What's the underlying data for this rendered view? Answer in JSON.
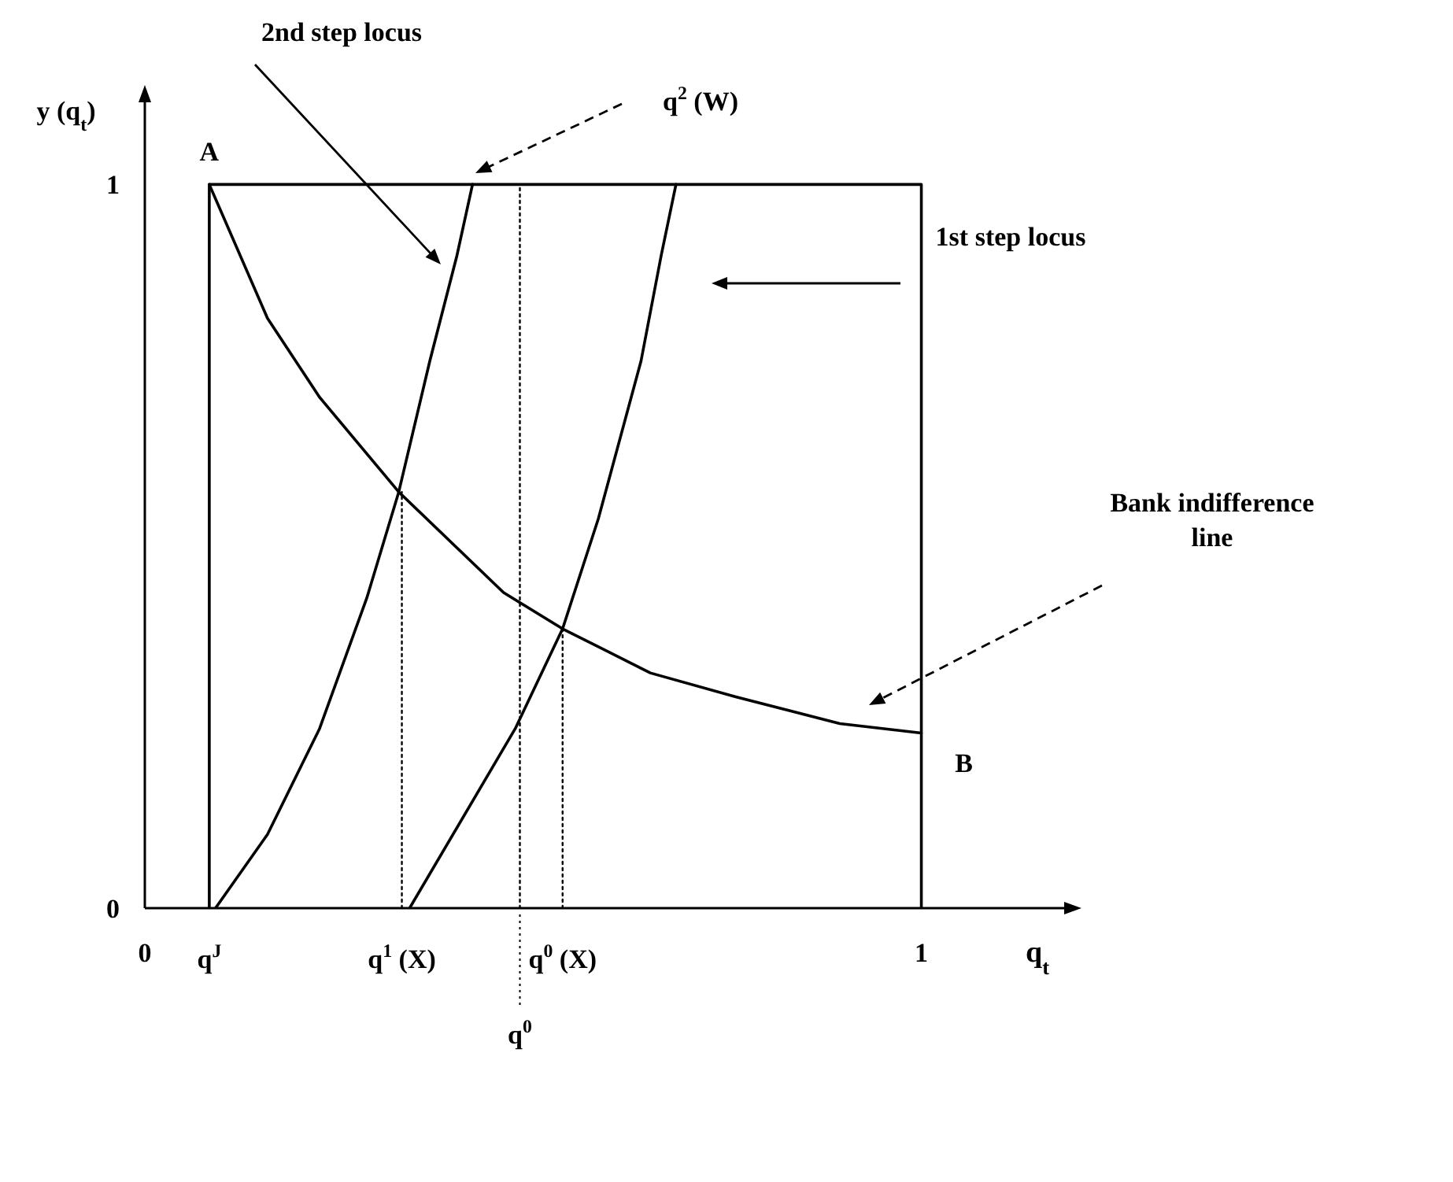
{
  "chart_data": {
    "type": "line",
    "xlabel": "q$_{t}$",
    "ylabel": "y (q$_{t}$)",
    "xlim": [
      0,
      1.19
    ],
    "xticks": [
      0,
      1
    ],
    "ylim": [
      0,
      1.12
    ],
    "yticks": [
      0,
      1
    ],
    "marker": "none",
    "series": [
      {
        "color": "#000000",
        "x": [
          0.083,
          0.158,
          0.225,
          0.327,
          0.462,
          0.538,
          0.651,
          0.761,
          0.895,
          1.0
        ],
        "values": [
          1,
          0.815,
          0.706,
          0.575,
          0.436,
          0.386,
          0.325,
          0.292,
          0.255,
          0.242
        ]
      },
      {
        "color": "#000000",
        "x": [
          0.091,
          0.158,
          0.225,
          0.286,
          0.327,
          0.367,
          0.402,
          0.422
        ],
        "values": [
          0,
          0.102,
          0.248,
          0.429,
          0.575,
          0.756,
          0.902,
          1
        ]
      },
      {
        "color": "#000000",
        "x": [
          0.341,
          0.477,
          0.538,
          0.584,
          0.639,
          0.665,
          0.684
        ],
        "values": [
          0,
          0.248,
          0.386,
          0.538,
          0.756,
          0.902,
          1
        ]
      },
      {
        "color": "#000000",
        "x": [
          0.083,
          0.083,
          1,
          1
        ],
        "values": [
          0,
          1,
          1,
          0
        ]
      },
      {
        "color": "#000000",
        "line_style": "dotted",
        "x": [
          0.331,
          0.331
        ],
        "values": [
          0,
          0.575
        ]
      },
      {
        "color": "#000000",
        "line_style": "dotted",
        "x": [
          0.483,
          0.483
        ],
        "values": [
          0,
          1
        ]
      },
      {
        "color": "#000000",
        "line_style": "dotted",
        "x": [
          0.538,
          0.538
        ],
        "values": [
          0,
          0.386
        ]
      }
    ],
    "annotations": [
      {
        "text": "A",
        "x": 0.083,
        "y": 1
      },
      "2nd step locus",
      "q$^{2}$ (W)",
      "1st step locus",
      "Bank indifference line",
      {
        "text": "B",
        "x": 1,
        "y": 0.242
      },
      {
        "text": "q$^{J}$",
        "x": 0.083,
        "y": 0
      },
      {
        "text": "q$^{1}$ (X)",
        "x": 0.331,
        "y": 0
      },
      {
        "text": "q$^{0}$",
        "x": 0.483,
        "y": 0
      },
      {
        "text": "q$^{0}$ (X)",
        "x": 0.538,
        "y": 0
      }
    ]
  }
}
